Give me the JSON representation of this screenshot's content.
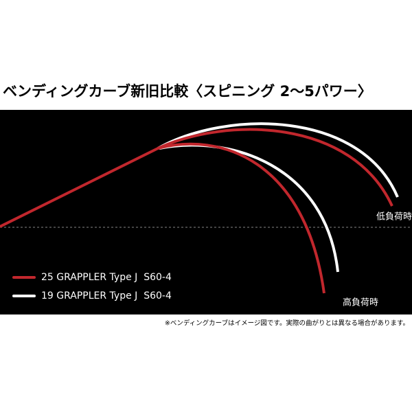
{
  "title": "ベンディングカーブ新旧比較〈スピニング 2〜5パワー〉",
  "legend": [
    {
      "label": "25 GRAPPLER Type J  S60-4",
      "color": "#c1272d"
    },
    {
      "label": "19 GRAPPLER Type J  S60-4",
      "color": "#ffffff"
    }
  ],
  "labels": {
    "low_load": "低負荷時",
    "high_load": "高負荷時"
  },
  "footnote": "※ベンディングカーブはイメージ図です。実際の曲がりとは異なる場合があります。"
}
